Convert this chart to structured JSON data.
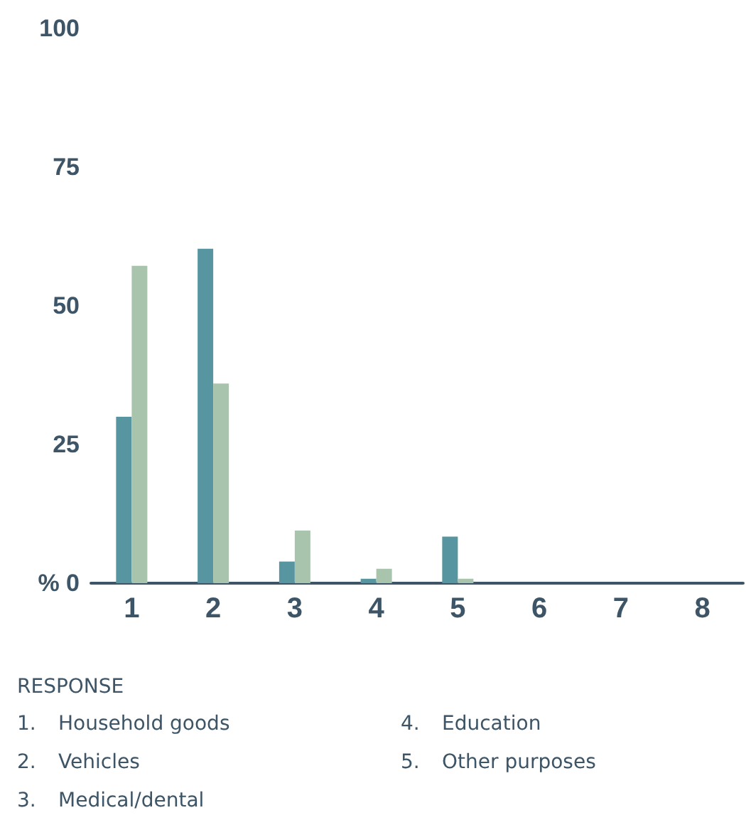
{
  "chart_data": {
    "type": "bar",
    "categories": [
      "1",
      "2",
      "3",
      "4",
      "5",
      "6",
      "7",
      "8"
    ],
    "series": [
      {
        "color": "#5795a0",
        "values": [
          30,
          60.3,
          3.9,
          0.8,
          8.4,
          null,
          null,
          null
        ]
      },
      {
        "color": "#a9c4ad",
        "values": [
          57.2,
          36,
          9.5,
          2.6,
          0.8,
          null,
          null,
          null
        ]
      }
    ],
    "ylim": [
      0,
      100
    ],
    "yticks": [
      {
        "value": 0,
        "label": "% 0"
      },
      25,
      50,
      75,
      100
    ],
    "grid": false,
    "annotations": [
      "RESPONSE",
      "1.\tHousehold goods",
      "2.\tVehicles",
      "3.\tMedical/dental",
      "4.\tEducation",
      "5.\tOther purposes"
    ]
  }
}
